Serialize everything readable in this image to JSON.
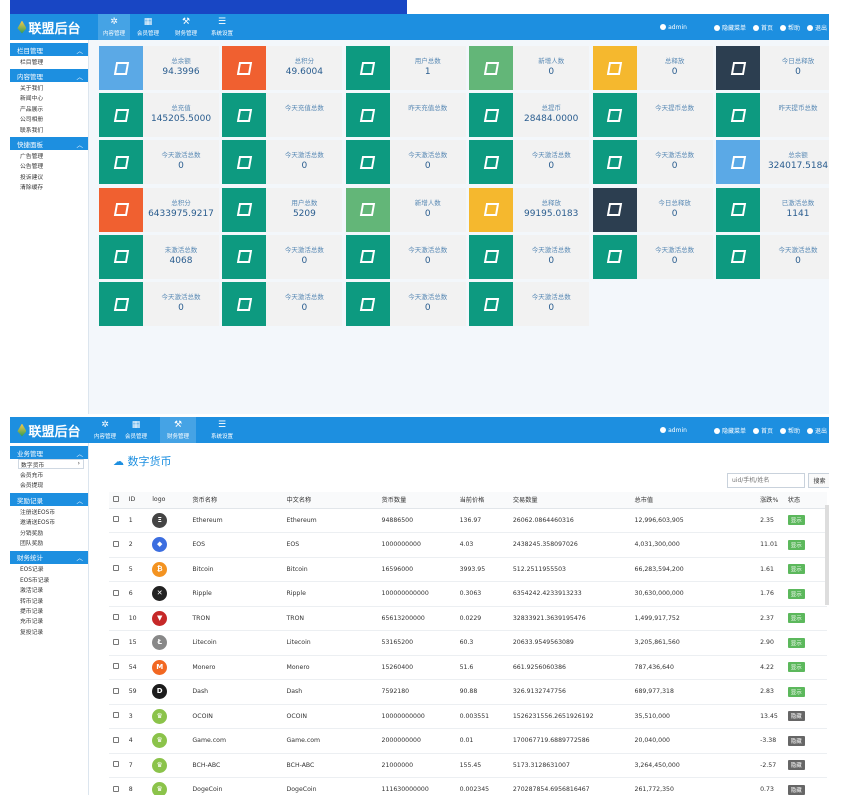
{
  "app": {
    "title": "联盟后台"
  },
  "nav": [
    {
      "label": "内容管理",
      "icon": "gear-icon"
    },
    {
      "label": "会员管理",
      "icon": "grid-icon"
    },
    {
      "label": "财务管理",
      "icon": "wrench-icon"
    },
    {
      "label": "系统设置",
      "icon": "list-icon"
    }
  ],
  "top_right": {
    "user": "admin",
    "hide_menu": "隐藏菜单",
    "home": "首页",
    "help": "帮助",
    "logout": "退出"
  },
  "sidebar1": [
    {
      "title": "栏目管理",
      "items": [
        "栏目管理"
      ]
    },
    {
      "title": "内容管理",
      "items": [
        "关于我们",
        "新闻中心",
        "产品展示",
        "公司相册",
        "联系我们"
      ]
    },
    {
      "title": "快捷面板",
      "items": [
        "广告管理",
        "公告管理",
        "投诉建议",
        "清除缓存"
      ]
    }
  ],
  "stats": [
    {
      "label": "总余额",
      "value": "94.3996",
      "color": "#5ba9e6"
    },
    {
      "label": "总积分",
      "value": "49.6004",
      "color": "#f06030"
    },
    {
      "label": "用户总数",
      "value": "1",
      "color": "#0d9a80"
    },
    {
      "label": "新增人数",
      "value": "0",
      "color": "#63b678"
    },
    {
      "label": "总释放",
      "value": "0",
      "color": "#f5b82e"
    },
    {
      "label": "今日总释放",
      "value": "0",
      "color": "#2c3e50"
    },
    {
      "label": "总充值",
      "value": "145205.5000",
      "color": "#0d9a80"
    },
    {
      "label": "今天充值总数",
      "value": "",
      "color": "#0d9a80"
    },
    {
      "label": "昨天充值总数",
      "value": "",
      "color": "#0d9a80"
    },
    {
      "label": "总提币",
      "value": "28484.0000",
      "color": "#0d9a80"
    },
    {
      "label": "今天提币总数",
      "value": "",
      "color": "#0d9a80"
    },
    {
      "label": "昨天提币总数",
      "value": "",
      "color": "#0d9a80"
    },
    {
      "label": "今天激活总数",
      "value": "0",
      "color": "#0d9a80"
    },
    {
      "label": "今天激活总数",
      "value": "0",
      "color": "#0d9a80"
    },
    {
      "label": "今天激活总数",
      "value": "0",
      "color": "#0d9a80"
    },
    {
      "label": "今天激活总数",
      "value": "0",
      "color": "#0d9a80"
    },
    {
      "label": "今天激活总数",
      "value": "0",
      "color": "#0d9a80"
    },
    {
      "label": "总余额",
      "value": "324017.5184",
      "color": "#5ba9e6"
    },
    {
      "label": "总积分",
      "value": "6433975.9217",
      "color": "#f06030"
    },
    {
      "label": "用户总数",
      "value": "5209",
      "color": "#0d9a80"
    },
    {
      "label": "新增人数",
      "value": "0",
      "color": "#63b678"
    },
    {
      "label": "总释放",
      "value": "99195.0183",
      "color": "#f5b82e"
    },
    {
      "label": "今日总释放",
      "value": "0",
      "color": "#2c3e50"
    },
    {
      "label": "已激活总数",
      "value": "1141",
      "color": "#0d9a80"
    },
    {
      "label": "未激活总数",
      "value": "4068",
      "color": "#0d9a80"
    },
    {
      "label": "今天激活总数",
      "value": "0",
      "color": "#0d9a80"
    },
    {
      "label": "今天激活总数",
      "value": "0",
      "color": "#0d9a80"
    },
    {
      "label": "今天激活总数",
      "value": "0",
      "color": "#0d9a80"
    },
    {
      "label": "今天激活总数",
      "value": "0",
      "color": "#0d9a80"
    },
    {
      "label": "今天激活总数",
      "value": "0",
      "color": "#0d9a80"
    },
    {
      "label": "今天激活总数",
      "value": "0",
      "color": "#0d9a80"
    },
    {
      "label": "今天激活总数",
      "value": "0",
      "color": "#0d9a80"
    },
    {
      "label": "今天激活总数",
      "value": "0",
      "color": "#0d9a80"
    },
    {
      "label": "今天激活总数",
      "value": "0",
      "color": "#0d9a80"
    }
  ],
  "sidebar2": [
    {
      "title": "业务管理",
      "items": [
        "数字货币",
        "会员充币",
        "会员提现"
      ]
    },
    {
      "title": "奖励记录",
      "items": [
        "注册送EOS币",
        "邀请送EOS币",
        "分销奖励",
        "团队奖励"
      ]
    },
    {
      "title": "财务统计",
      "items": [
        "EOS记录",
        "EOS币记录",
        "激活记录",
        "转币记录",
        "提币记录",
        "充币记录",
        "复投记录"
      ]
    }
  ],
  "page": {
    "title": "数字货币",
    "search_placeholder": "uid/手机/姓名",
    "search_button": "搜索"
  },
  "table": {
    "headers": [
      "ID",
      "logo",
      "货币名称",
      "中文名称",
      "货币数量",
      "当前价格",
      "交易数量",
      "总市值",
      "涨跌%",
      "状态"
    ],
    "rows": [
      {
        "id": "1",
        "logo": "Ξ",
        "logo_color": "#444",
        "name": "Ethereum",
        "cn": "Ethereum",
        "amount": "94886500",
        "price": "136.97",
        "volume": "26062.0864460316",
        "cap": "12,996,603,905",
        "change": "2.35",
        "status": "显示",
        "status_color": "#5cb85c"
      },
      {
        "id": "2",
        "logo": "◆",
        "logo_color": "#3c6ee0",
        "name": "EOS",
        "cn": "EOS",
        "amount": "1000000000",
        "price": "4.03",
        "volume": "2438245.358097026",
        "cap": "4,031,300,000",
        "change": "11.01",
        "status": "显示",
        "status_color": "#5cb85c"
      },
      {
        "id": "5",
        "logo": "₿",
        "logo_color": "#f39321",
        "name": "Bitcoin",
        "cn": "Bitcoin",
        "amount": "16596000",
        "price": "3993.95",
        "volume": "512.2511955503",
        "cap": "66,283,594,200",
        "change": "1.61",
        "status": "显示",
        "status_color": "#5cb85c"
      },
      {
        "id": "6",
        "logo": "✕",
        "logo_color": "#222",
        "name": "Ripple",
        "cn": "Ripple",
        "amount": "100000000000",
        "price": "0.3063",
        "volume": "6354242.4233913233",
        "cap": "30,630,000,000",
        "change": "1.76",
        "status": "显示",
        "status_color": "#5cb85c"
      },
      {
        "id": "10",
        "logo": "▼",
        "logo_color": "#c62828",
        "name": "TRON",
        "cn": "TRON",
        "amount": "65613200000",
        "price": "0.0229",
        "volume": "32833921.3639195476",
        "cap": "1,499,917,752",
        "change": "2.37",
        "status": "显示",
        "status_color": "#5cb85c"
      },
      {
        "id": "15",
        "logo": "Ł",
        "logo_color": "#888",
        "name": "Litecoin",
        "cn": "Litecoin",
        "amount": "53165200",
        "price": "60.3",
        "volume": "20633.9549563089",
        "cap": "3,205,861,560",
        "change": "2.90",
        "status": "显示",
        "status_color": "#5cb85c"
      },
      {
        "id": "54",
        "logo": "M",
        "logo_color": "#f26822",
        "name": "Monero",
        "cn": "Monero",
        "amount": "15260400",
        "price": "51.6",
        "volume": "661.9256060386",
        "cap": "787,436,640",
        "change": "4.22",
        "status": "显示",
        "status_color": "#5cb85c"
      },
      {
        "id": "59",
        "logo": "D",
        "logo_color": "#1c1c1c",
        "name": "Dash",
        "cn": "Dash",
        "amount": "7592180",
        "price": "90.88",
        "volume": "326.9132747756",
        "cap": "689,977,318",
        "change": "2.83",
        "status": "显示",
        "status_color": "#5cb85c"
      },
      {
        "id": "3",
        "logo": "♛",
        "logo_color": "#8bc34a",
        "name": "OCOIN",
        "cn": "OCOIN",
        "amount": "10000000000",
        "price": "0.003551",
        "volume": "1526231556.2651926192",
        "cap": "35,510,000",
        "change": "13.45",
        "status": "隐藏",
        "status_color": "#666"
      },
      {
        "id": "4",
        "logo": "♛",
        "logo_color": "#8bc34a",
        "name": "Game.com",
        "cn": "Game.com",
        "amount": "2000000000",
        "price": "0.01",
        "volume": "170067719.6889772586",
        "cap": "20,040,000",
        "change": "-3.38",
        "status": "隐藏",
        "status_color": "#666"
      },
      {
        "id": "7",
        "logo": "♛",
        "logo_color": "#8bc34a",
        "name": "BCH-ABC",
        "cn": "BCH-ABC",
        "amount": "21000000",
        "price": "155.45",
        "volume": "5173.3128631007",
        "cap": "3,264,450,000",
        "change": "-2.57",
        "status": "隐藏",
        "status_color": "#666"
      },
      {
        "id": "8",
        "logo": "♛",
        "logo_color": "#8bc34a",
        "name": "DogeCoin",
        "cn": "DogeCoin",
        "amount": "111630000000",
        "price": "0.002345",
        "volume": "270287854.6956816467",
        "cap": "261,772,350",
        "change": "0.73",
        "status": "隐藏",
        "status_color": "#666"
      }
    ]
  }
}
